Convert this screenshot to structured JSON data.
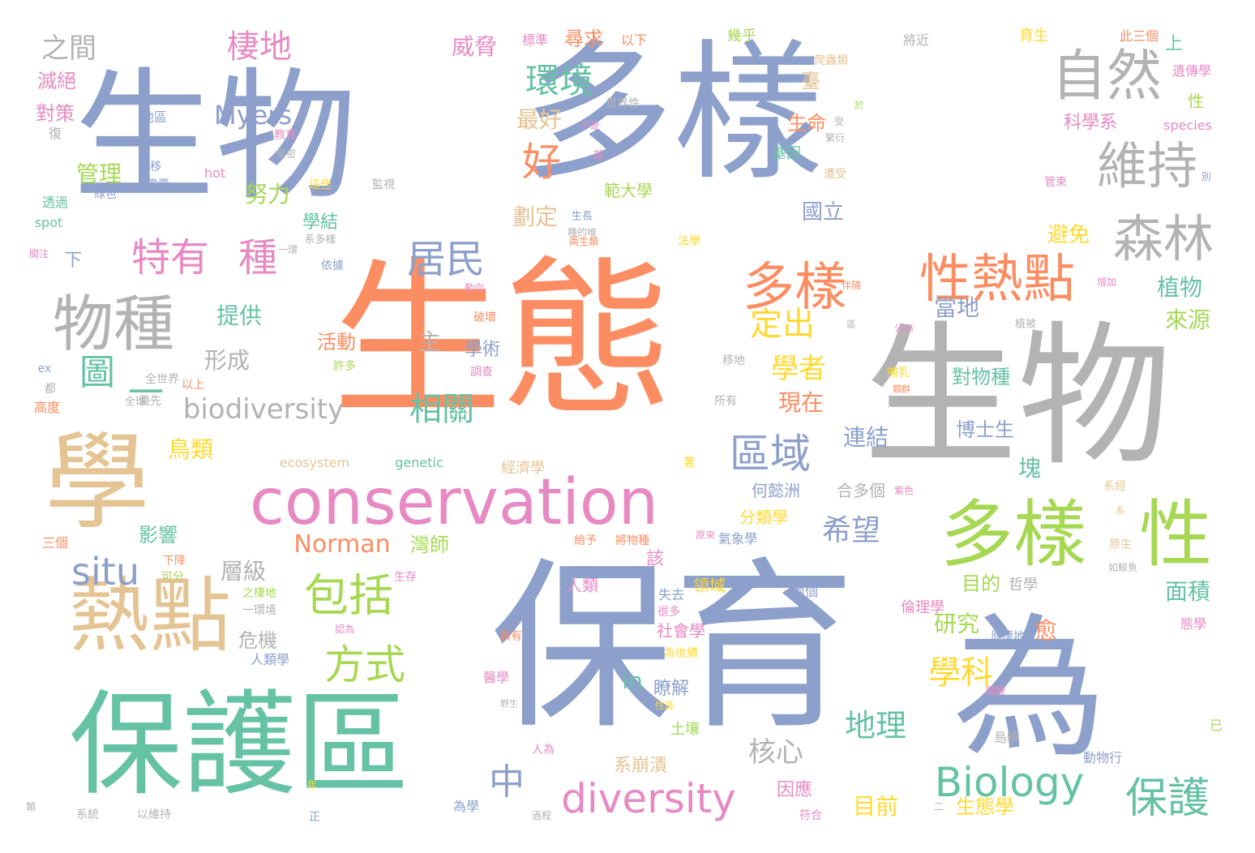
{
  "colors": {
    "blue": "#8da0cb",
    "orange": "#fc8d62",
    "green": "#66c2a5",
    "pink": "#e78ac3",
    "lime": "#a6d854",
    "yellow": "#ffd92f",
    "tan": "#e5c494",
    "gray": "#b3b3b3"
  },
  "words": [
    {
      "text": "生物",
      "color": "blue"
    },
    {
      "text": "多樣",
      "color": "blue"
    },
    {
      "text": "生態",
      "color": "orange"
    },
    {
      "text": "生物",
      "color": "gray"
    },
    {
      "text": "保育",
      "color": "blue"
    },
    {
      "text": "為",
      "color": "blue"
    },
    {
      "text": "保護區",
      "color": "green"
    },
    {
      "text": "學",
      "color": "tan"
    },
    {
      "text": "conservation",
      "color": "pink"
    },
    {
      "text": "熱點",
      "color": "tan"
    },
    {
      "text": "多樣",
      "color": "lime"
    },
    {
      "text": "性",
      "color": "lime"
    },
    {
      "text": "自然",
      "color": "gray"
    },
    {
      "text": "維持",
      "color": "gray"
    },
    {
      "text": "森林",
      "color": "gray"
    },
    {
      "text": "物種",
      "color": "gray"
    },
    {
      "text": "多樣",
      "color": "orange"
    },
    {
      "text": "性熱點",
      "color": "orange"
    },
    {
      "text": "特有",
      "color": "pink"
    },
    {
      "text": "種",
      "color": "pink"
    },
    {
      "text": "Biology",
      "color": "green"
    },
    {
      "text": "diversity",
      "color": "pink"
    },
    {
      "text": "包括",
      "color": "lime"
    },
    {
      "text": "方式",
      "color": "lime"
    },
    {
      "text": "保護",
      "color": "green"
    },
    {
      "text": "區域",
      "color": "blue"
    },
    {
      "text": "居民",
      "color": "blue"
    },
    {
      "text": "好",
      "color": "orange"
    },
    {
      "text": "環境",
      "color": "green"
    },
    {
      "text": "棲地",
      "color": "pink"
    },
    {
      "text": "之間",
      "color": "gray"
    },
    {
      "text": "situ",
      "color": "blue"
    },
    {
      "text": "圖",
      "color": "green"
    },
    {
      "text": "一",
      "color": "green"
    },
    {
      "text": "biodiversity",
      "color": "gray"
    },
    {
      "text": "相關",
      "color": "green"
    },
    {
      "text": "學科",
      "color": "yellow"
    },
    {
      "text": "定出",
      "color": "yellow"
    },
    {
      "text": "學者",
      "color": "yellow"
    },
    {
      "text": "Norman",
      "color": "orange"
    },
    {
      "text": "Myers",
      "color": "blue"
    },
    {
      "text": "希望",
      "color": "blue"
    },
    {
      "text": "地理",
      "color": "green"
    },
    {
      "text": "核心",
      "color": "gray"
    },
    {
      "text": "中",
      "color": "blue"
    },
    {
      "text": "威脅",
      "color": "pink"
    },
    {
      "text": "尋求",
      "color": "orange"
    },
    {
      "text": "最好",
      "color": "tan"
    },
    {
      "text": "管理",
      "color": "lime"
    },
    {
      "text": "努力",
      "color": "lime"
    },
    {
      "text": "提供",
      "color": "green"
    },
    {
      "text": "鳥類",
      "color": "yellow"
    },
    {
      "text": "形成",
      "color": "gray"
    },
    {
      "text": "主",
      "color": "gray"
    },
    {
      "text": "層級",
      "color": "gray"
    },
    {
      "text": "植物",
      "color": "green"
    },
    {
      "text": "來源",
      "color": "lime"
    },
    {
      "text": "面積",
      "color": "green"
    },
    {
      "text": "研究",
      "color": "lime"
    },
    {
      "text": "目前",
      "color": "yellow"
    },
    {
      "text": "因應",
      "color": "pink"
    },
    {
      "text": "生態學",
      "color": "yellow"
    },
    {
      "text": "連結",
      "color": "blue"
    },
    {
      "text": "現在",
      "color": "orange"
    },
    {
      "text": "當地",
      "color": "blue"
    },
    {
      "text": "對物種",
      "color": "green"
    },
    {
      "text": "博士生",
      "color": "blue"
    },
    {
      "text": "塊",
      "color": "green"
    },
    {
      "text": "目的",
      "color": "lime"
    },
    {
      "text": "愈",
      "color": "orange"
    },
    {
      "text": "國立",
      "color": "blue"
    },
    {
      "text": "避免",
      "color": "yellow"
    },
    {
      "text": "科學系",
      "color": "pink"
    },
    {
      "text": "劃定",
      "color": "tan"
    },
    {
      "text": "範大學",
      "color": "lime"
    },
    {
      "text": "學結",
      "color": "green"
    },
    {
      "text": "生命",
      "color": "orange"
    },
    {
      "text": "基因",
      "color": "green"
    },
    {
      "text": "臺",
      "color": "tan"
    },
    {
      "text": "對策",
      "color": "pink"
    },
    {
      "text": "滅絕",
      "color": "pink"
    },
    {
      "text": "學術",
      "color": "blue"
    },
    {
      "text": "活動",
      "color": "orange"
    },
    {
      "text": "影響",
      "color": "green"
    },
    {
      "text": "危機",
      "color": "gray"
    },
    {
      "text": "in",
      "color": "green"
    },
    {
      "text": "瞭解",
      "color": "blue"
    },
    {
      "text": "何懿洲",
      "color": "blue"
    },
    {
      "text": "分類學",
      "color": "yellow"
    },
    {
      "text": "合多個",
      "color": "gray"
    },
    {
      "text": "灣師",
      "color": "lime"
    },
    {
      "text": "下",
      "color": "blue"
    },
    {
      "text": "該",
      "color": "pink"
    },
    {
      "text": "系崩潰",
      "color": "tan"
    },
    {
      "text": "領域",
      "color": "yellow"
    },
    {
      "text": "人類",
      "color": "pink"
    },
    {
      "text": "社會學",
      "color": "pink"
    },
    {
      "text": "土壤",
      "color": "lime"
    },
    {
      "text": "倫理學",
      "color": "pink"
    },
    {
      "text": "經濟學",
      "color": "tan"
    },
    {
      "text": "哲學",
      "color": "gray"
    },
    {
      "text": "上",
      "color": "green"
    },
    {
      "text": "遺傳學",
      "color": "pink"
    },
    {
      "text": "育生",
      "color": "yellow"
    },
    {
      "text": "此三個",
      "color": "orange"
    },
    {
      "text": "將近",
      "color": "gray"
    },
    {
      "text": "爬蟲類",
      "color": "tan"
    },
    {
      "text": "幾乎",
      "color": "lime"
    },
    {
      "text": "以下",
      "color": "orange"
    },
    {
      "text": "標準",
      "color": "pink"
    },
    {
      "text": "生長",
      "color": "blue"
    },
    {
      "text": "性",
      "color": "lime"
    },
    {
      "text": "species",
      "color": "pink"
    },
    {
      "text": "genetic",
      "color": "green"
    },
    {
      "text": "ecosystem",
      "color": "tan"
    },
    {
      "text": "hot",
      "color": "pink"
    },
    {
      "text": "spot",
      "color": "green"
    },
    {
      "text": "透過",
      "color": "green"
    },
    {
      "text": "地區",
      "color": "blue"
    },
    {
      "text": "世界性",
      "color": "gray"
    },
    {
      "text": "教育",
      "color": "pink"
    },
    {
      "text": "全世界",
      "color": "gray"
    },
    {
      "text": "全球",
      "color": "gray"
    },
    {
      "text": "高度",
      "color": "orange"
    },
    {
      "text": "三個",
      "color": "orange"
    },
    {
      "text": "優先",
      "color": "gray"
    },
    {
      "text": "以上",
      "color": "orange"
    },
    {
      "text": "許多",
      "color": "lime"
    },
    {
      "text": "調查",
      "color": "pink"
    },
    {
      "text": "所有",
      "color": "gray"
    },
    {
      "text": "哺乳",
      "color": "yellow"
    },
    {
      "text": "移地",
      "color": "gray"
    },
    {
      "text": "公布",
      "color": "pink"
    },
    {
      "text": "植被",
      "color": "gray"
    },
    {
      "text": "增加",
      "color": "pink"
    },
    {
      "text": "伴隨",
      "color": "orange"
    },
    {
      "text": "破壞",
      "color": "orange"
    },
    {
      "text": "法學",
      "color": "yellow"
    },
    {
      "text": "依據",
      "color": "blue"
    },
    {
      "text": "關注",
      "color": "pink"
    },
    {
      "text": "遷移",
      "color": "blue"
    },
    {
      "text": "需要",
      "color": "blue"
    },
    {
      "text": "監視",
      "color": "gray"
    },
    {
      "text": "這些",
      "color": "yellow"
    },
    {
      "text": "生存",
      "color": "pink"
    },
    {
      "text": "失去",
      "color": "blue"
    },
    {
      "text": "很多",
      "color": "pink"
    },
    {
      "text": "具有",
      "color": "orange"
    },
    {
      "text": "認為",
      "color": "pink"
    },
    {
      "text": "為後續",
      "color": "yellow"
    },
    {
      "text": "原棲地",
      "color": "blue"
    },
    {
      "text": "兩個",
      "color": "blue"
    },
    {
      "text": "人類學",
      "color": "blue"
    },
    {
      "text": "醫學",
      "color": "pink"
    },
    {
      "text": "人為",
      "color": "pink"
    },
    {
      "text": "動物行",
      "color": "blue"
    },
    {
      "text": "島嶼",
      "color": "gray"
    },
    {
      "text": "態學",
      "color": "pink"
    },
    {
      "text": "已",
      "color": "lime"
    },
    {
      "text": "為學",
      "color": "blue"
    },
    {
      "text": "符合",
      "color": "pink"
    },
    {
      "text": "過程",
      "color": "gray"
    },
    {
      "text": "以維持",
      "color": "gray"
    },
    {
      "text": "系統",
      "color": "gray"
    },
    {
      "text": "正",
      "color": "blue"
    },
    {
      "text": "年",
      "color": "yellow"
    },
    {
      "text": "類",
      "color": "gray"
    },
    {
      "text": "二",
      "color": "gray"
    },
    {
      "text": "給予",
      "color": "orange"
    },
    {
      "text": "將物種",
      "color": "orange"
    },
    {
      "text": "氣象學",
      "color": "blue"
    },
    {
      "text": "原來",
      "color": "pink"
    },
    {
      "text": "原生",
      "color": "tan"
    },
    {
      "text": "系經",
      "color": "tan"
    },
    {
      "text": "如鯨魚",
      "color": "gray"
    },
    {
      "text": "下降",
      "color": "orange"
    },
    {
      "text": "可分",
      "color": "lime"
    },
    {
      "text": "之棲地",
      "color": "lime"
    },
    {
      "text": "一環境",
      "color": "gray"
    },
    {
      "text": "緊密",
      "color": "gray"
    },
    {
      "text": "復",
      "color": "gray"
    },
    {
      "text": "不是",
      "color": "pink"
    },
    {
      "text": "部",
      "color": "pink"
    },
    {
      "text": "於",
      "color": "lime"
    },
    {
      "text": "受",
      "color": "gray"
    },
    {
      "text": "繁衍",
      "color": "gray"
    },
    {
      "text": "遭受",
      "color": "tan"
    },
    {
      "text": "管束",
      "color": "pink"
    },
    {
      "text": "別",
      "color": "blue"
    },
    {
      "text": "ex",
      "color": "blue"
    },
    {
      "text": "都",
      "color": "gray"
    },
    {
      "text": "綠色",
      "color": "blue"
    },
    {
      "text": "系多樣",
      "color": "gray"
    },
    {
      "text": "一環",
      "color": "gray"
    },
    {
      "text": "種的唯",
      "color": "gray"
    },
    {
      "text": "兩生類",
      "color": "orange"
    },
    {
      "text": "動向",
      "color": "pink"
    },
    {
      "text": "著",
      "color": "yellow"
    },
    {
      "text": "野生",
      "color": "gray"
    },
    {
      "text": "性區",
      "color": "yellow"
    },
    {
      "text": "關鍵",
      "color": "pink"
    },
    {
      "text": "系",
      "color": "tan"
    },
    {
      "text": "區",
      "color": "gray"
    },
    {
      "text": "紫色",
      "color": "pink"
    },
    {
      "text": "類群",
      "color": "orange"
    }
  ]
}
